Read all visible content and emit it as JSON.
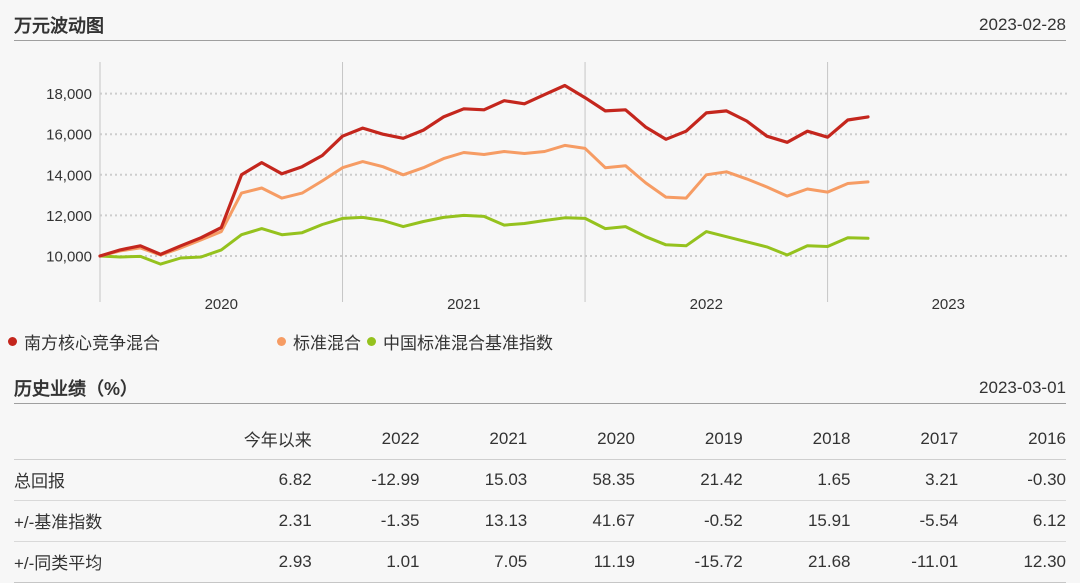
{
  "sections": {
    "chart": {
      "title": "万元波动图",
      "date": "2023-02-28"
    },
    "history": {
      "title": "历史业绩（%）",
      "date": "2023-03-01"
    }
  },
  "chart_data": {
    "type": "line",
    "title": "万元波动图",
    "as_of": "2023-02-28",
    "unit_note": "growth of 10,000 yuan",
    "grid": true,
    "legend_position": "bottom",
    "ylim": [
      9300,
      19000
    ],
    "y_ticks": [
      {
        "v": 10000,
        "label": "10,000"
      },
      {
        "v": 12000,
        "label": "12,000"
      },
      {
        "v": 14000,
        "label": "14,000"
      },
      {
        "v": 16000,
        "label": "16,000"
      },
      {
        "v": 18000,
        "label": "18,000"
      }
    ],
    "x_axis_years": [
      "2020",
      "2021",
      "2022",
      "2023"
    ],
    "x": [
      "2019-12",
      "2020-01",
      "2020-02",
      "2020-03",
      "2020-04",
      "2020-05",
      "2020-06",
      "2020-07",
      "2020-08",
      "2020-09",
      "2020-10",
      "2020-11",
      "2020-12",
      "2021-01",
      "2021-02",
      "2021-03",
      "2021-04",
      "2021-05",
      "2021-06",
      "2021-07",
      "2021-08",
      "2021-09",
      "2021-10",
      "2021-11",
      "2021-12",
      "2022-01",
      "2022-02",
      "2022-03",
      "2022-04",
      "2022-05",
      "2022-06",
      "2022-07",
      "2022-08",
      "2022-09",
      "2022-10",
      "2022-11",
      "2022-12",
      "2023-01",
      "2023-02"
    ],
    "series": [
      {
        "name": "南方核心竞争混合",
        "color": "#c4261d",
        "width": 3.2,
        "values": [
          10000,
          10300,
          10500,
          10080,
          10500,
          10900,
          11400,
          14000,
          14600,
          14050,
          14400,
          14950,
          15900,
          16300,
          16000,
          15800,
          16200,
          16850,
          17250,
          17200,
          17650,
          17500,
          17950,
          18400,
          17800,
          17150,
          17200,
          16350,
          15750,
          16150,
          17050,
          17150,
          16650,
          15900,
          15600,
          16150,
          15850,
          16700,
          16850
        ]
      },
      {
        "name": "标准混合",
        "color": "#f69c64",
        "width": 3,
        "values": [
          10000,
          10250,
          10400,
          10050,
          10400,
          10800,
          11200,
          13100,
          13350,
          12850,
          13100,
          13700,
          14350,
          14650,
          14400,
          14000,
          14350,
          14800,
          15100,
          15000,
          15150,
          15050,
          15150,
          15450,
          15300,
          14350,
          14450,
          13600,
          12900,
          12850,
          14000,
          14150,
          13800,
          13400,
          12950,
          13300,
          13150,
          13570,
          13650
        ]
      },
      {
        "name": "中国标准混合基准指数",
        "color": "#95c21e",
        "width": 3,
        "values": [
          10000,
          9950,
          9980,
          9600,
          9900,
          9950,
          10300,
          11050,
          11350,
          11050,
          11150,
          11550,
          11850,
          11900,
          11750,
          11450,
          11700,
          11900,
          12000,
          11950,
          11520,
          11600,
          11750,
          11880,
          11850,
          11350,
          11450,
          10950,
          10550,
          10500,
          11200,
          10950,
          10700,
          10450,
          10050,
          10500,
          10470,
          10900,
          10870
        ]
      }
    ]
  },
  "table": {
    "columns": [
      "",
      "今年以来",
      "2022",
      "2021",
      "2020",
      "2019",
      "2018",
      "2017",
      "2016"
    ],
    "rows": [
      {
        "label": "总回报",
        "values": [
          "6.82",
          "-12.99",
          "15.03",
          "58.35",
          "21.42",
          "1.65",
          "3.21",
          "-0.30"
        ]
      },
      {
        "label": "+/-基准指数",
        "values": [
          "2.31",
          "-1.35",
          "13.13",
          "41.67",
          "-0.52",
          "15.91",
          "-5.54",
          "6.12"
        ]
      },
      {
        "label": "+/-同类平均",
        "values": [
          "2.93",
          "1.01",
          "7.05",
          "11.19",
          "-15.72",
          "21.68",
          "-11.01",
          "12.30"
        ]
      }
    ]
  }
}
